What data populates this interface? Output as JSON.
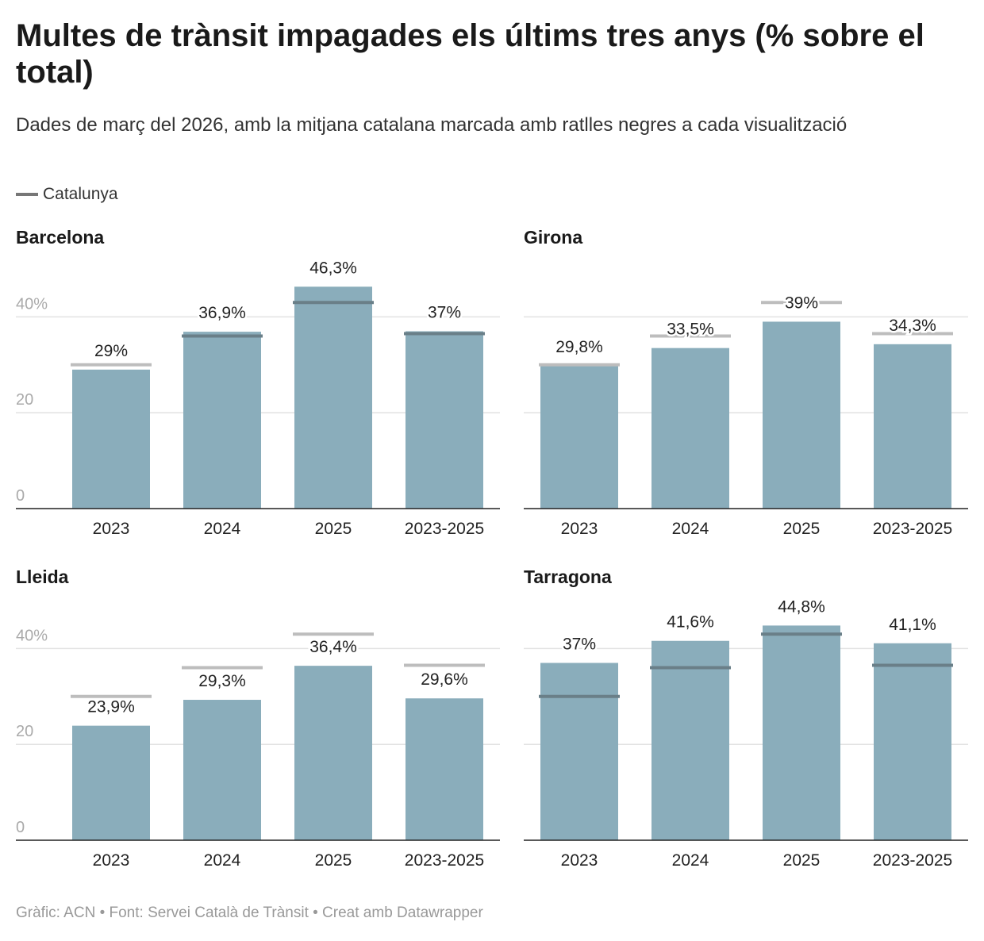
{
  "title": "Multes de trànsit impagades els últims tres anys (% sobre el total)",
  "subtitle": "Dades de març del 2026, amb la mitjana catalana marcada amb ratlles negres a cada visualització",
  "legend": {
    "label": "Catalunya",
    "color": "#777777"
  },
  "footer": "Gràfic: ACN • Font: Servei Català de Trànsit • Creat amb Datawrapper",
  "chart_data": {
    "type": "bar",
    "categories": [
      "2023",
      "2024",
      "2025",
      "2023-2025"
    ],
    "ylim": [
      0,
      50
    ],
    "yticks": [
      0,
      20,
      40
    ],
    "ytick_labels": [
      "0",
      "20",
      "40%"
    ],
    "grid": true,
    "bar_color": "#8aadbb",
    "reference_color_on_bar": "#6a7f88",
    "reference_color_above_bar": "#bdbdbd",
    "reference": {
      "name": "Catalunya",
      "values": [
        30,
        36,
        43,
        36.5
      ]
    },
    "panels": [
      {
        "title": "Barcelona",
        "values": [
          29,
          36.9,
          46.3,
          37
        ],
        "labels": [
          "29%",
          "36,9%",
          "46,3%",
          "37%"
        ]
      },
      {
        "title": "Girona",
        "values": [
          29.8,
          33.5,
          39,
          34.3
        ],
        "labels": [
          "29,8%",
          "33,5%",
          "39%",
          "34,3%"
        ]
      },
      {
        "title": "Lleida",
        "values": [
          23.9,
          29.3,
          36.4,
          29.6
        ],
        "labels": [
          "23,9%",
          "29,3%",
          "36,4%",
          "29,6%"
        ]
      },
      {
        "title": "Tarragona",
        "values": [
          37,
          41.6,
          44.8,
          41.1
        ],
        "labels": [
          "37%",
          "41,6%",
          "44,8%",
          "41,1%"
        ]
      }
    ]
  }
}
